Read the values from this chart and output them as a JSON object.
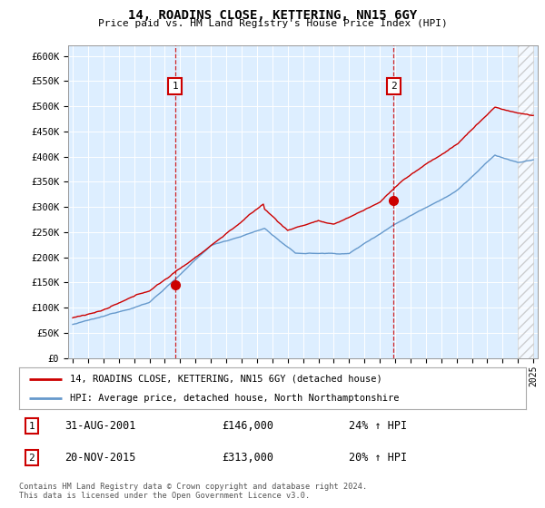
{
  "title": "14, ROADINS CLOSE, KETTERING, NN15 6GY",
  "subtitle": "Price paid vs. HM Land Registry's House Price Index (HPI)",
  "ylabel_ticks": [
    "£0",
    "£50K",
    "£100K",
    "£150K",
    "£200K",
    "£250K",
    "£300K",
    "£350K",
    "£400K",
    "£450K",
    "£500K",
    "£550K",
    "£600K"
  ],
  "ytick_values": [
    0,
    50000,
    100000,
    150000,
    200000,
    250000,
    300000,
    350000,
    400000,
    450000,
    500000,
    550000,
    600000
  ],
  "ylim": [
    0,
    620000
  ],
  "xlim_start": 1994.7,
  "xlim_end": 2025.3,
  "xticks": [
    1995,
    1996,
    1997,
    1998,
    1999,
    2000,
    2001,
    2002,
    2003,
    2004,
    2005,
    2006,
    2007,
    2008,
    2009,
    2010,
    2011,
    2012,
    2013,
    2014,
    2015,
    2016,
    2017,
    2018,
    2019,
    2020,
    2021,
    2022,
    2023,
    2024,
    2025
  ],
  "sale1_x": 2001.667,
  "sale1_y": 146000,
  "sale1_label": "1",
  "sale1_date": "31-AUG-2001",
  "sale1_price": "£146,000",
  "sale1_hpi": "24% ↑ HPI",
  "sale2_x": 2015.9,
  "sale2_y": 313000,
  "sale2_label": "2",
  "sale2_date": "20-NOV-2015",
  "sale2_price": "£313,000",
  "sale2_hpi": "20% ↑ HPI",
  "legend_line1": "14, ROADINS CLOSE, KETTERING, NN15 6GY (detached house)",
  "legend_line2": "HPI: Average price, detached house, North Northamptonshire",
  "footer": "Contains HM Land Registry data © Crown copyright and database right 2024.\nThis data is licensed under the Open Government Licence v3.0.",
  "red_color": "#cc0000",
  "blue_color": "#6699cc",
  "bg_color": "#ddeeff",
  "hatch_start": 2024.0
}
